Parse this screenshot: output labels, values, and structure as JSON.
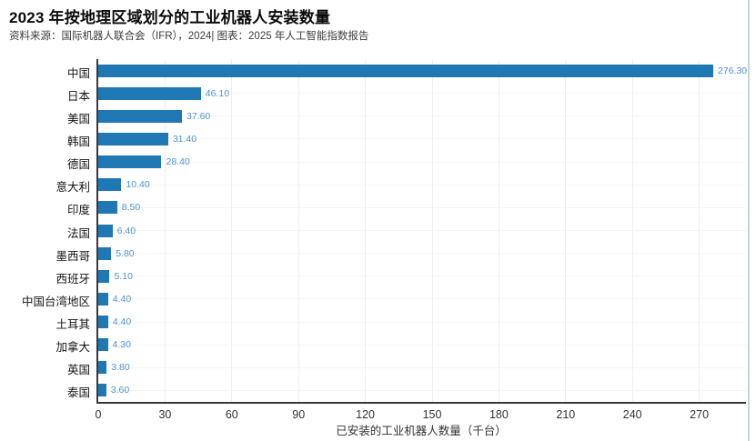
{
  "header": {
    "title": "2023 年按地理区域划分的工业机器人安装数量",
    "source": "资料来源：国际机器人联合会（IFR），2024| 图表：2025 年人工智能指数报告"
  },
  "chart_data": {
    "type": "bar",
    "orientation": "horizontal",
    "title": "2023 年按地理区域划分的工业机器人安装数量",
    "categories": [
      "中国",
      "日本",
      "美国",
      "韩国",
      "德国",
      "意大利",
      "印度",
      "法国",
      "墨西哥",
      "西班牙",
      "中国台湾地区",
      "土耳其",
      "加拿大",
      "英国",
      "泰国"
    ],
    "values": [
      276.3,
      46.1,
      37.6,
      31.4,
      28.4,
      10.4,
      8.5,
      6.4,
      5.8,
      5.1,
      4.4,
      4.4,
      4.3,
      3.8,
      3.6
    ],
    "value_labels": [
      "276.30",
      "46.10",
      "37.60",
      "31.40",
      "28.40",
      "10.40",
      "8.50",
      "6.40",
      "5.80",
      "5.10",
      "4.40",
      "4.40",
      "4.30",
      "3.80",
      "3.60"
    ],
    "xlabel": "已安装的工业机器人数量（千台）",
    "xlim": [
      0,
      291
    ],
    "xticks": [
      0,
      30,
      60,
      90,
      120,
      150,
      180,
      210,
      240,
      270
    ],
    "grid": true,
    "legend": "none",
    "colors": {
      "bar": "#1f77b4",
      "value_label": "#4f94d2",
      "axis": "#3a3a3e",
      "vgrid": "#ededf1",
      "hgrid": "#f4f4f7"
    }
  }
}
